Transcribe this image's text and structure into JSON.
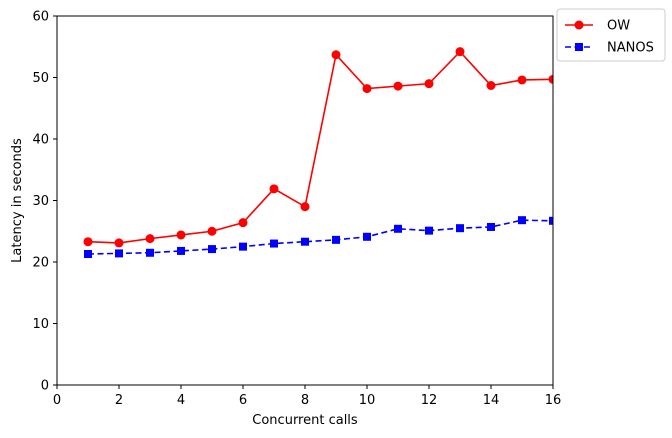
{
  "chart_data": {
    "type": "line",
    "xlabel": "Concurrent calls",
    "ylabel": "Latency in seconds",
    "xlim": [
      0,
      16
    ],
    "ylim": [
      0,
      60
    ],
    "xticks": [
      0,
      2,
      4,
      6,
      8,
      10,
      12,
      14,
      16
    ],
    "yticks": [
      0,
      10,
      20,
      30,
      40,
      50,
      60
    ],
    "grid": false,
    "legend_position": "outside-top-right",
    "x": [
      1,
      2,
      3,
      4,
      5,
      6,
      7,
      8,
      9,
      10,
      11,
      12,
      13,
      14,
      15,
      16
    ],
    "series": [
      {
        "name": "OW",
        "color": "#ff0000",
        "line_style": "solid",
        "marker": "circle",
        "values": [
          23.3,
          23.1,
          23.8,
          24.4,
          25.0,
          26.4,
          31.9,
          29.0,
          53.7,
          48.2,
          48.6,
          49.0,
          54.2,
          48.7,
          49.6,
          49.7
        ]
      },
      {
        "name": "NANOS",
        "color": "#0000ff",
        "line_style": "dashed",
        "marker": "square",
        "values": [
          21.3,
          21.4,
          21.5,
          21.8,
          22.1,
          22.5,
          23.0,
          23.3,
          23.6,
          24.1,
          25.4,
          25.1,
          25.5,
          25.7,
          26.8,
          26.7
        ]
      }
    ]
  }
}
